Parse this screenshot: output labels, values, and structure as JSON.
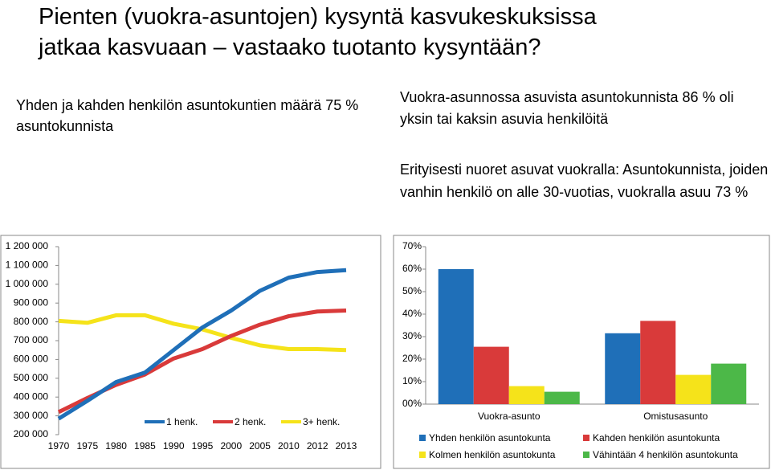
{
  "title_lines": [
    "Pienten (vuokra-asuntojen) kysyntä kasvukeskuksissa",
    "jatkaa kasvuaan – vastaako tuotanto kysyntään?"
  ],
  "left_text": "Yhden ja kahden henkilön asuntokuntien määrä 75 % asuntokunnista",
  "right_text_1": "Vuokra-asunnossa asuvista asuntokunnista 86 % oli yksin tai kaksin asuvia henkilöitä",
  "right_text_2": "Erityisesti nuoret asuvat vuokralla: Asuntokunnista, joiden vanhin henkilö on alle 30-vuotias, vuokralla asuu 73 %",
  "chart_data": [
    {
      "type": "line",
      "categories": [
        "1970",
        "1975",
        "1980",
        "1985",
        "1990",
        "1995",
        "2000",
        "2005",
        "2010",
        "2012",
        "2013"
      ],
      "ylim": [
        200000,
        1200000
      ],
      "yticks": [
        {
          "value": 200000,
          "label": "200 000"
        },
        {
          "value": 300000,
          "label": "300 000"
        },
        {
          "value": 400000,
          "label": "400 000"
        },
        {
          "value": 500000,
          "label": "500 000"
        },
        {
          "value": 600000,
          "label": "600 000"
        },
        {
          "value": 700000,
          "label": "700 000"
        },
        {
          "value": 800000,
          "label": "800 000"
        },
        {
          "value": 900000,
          "label": "900 000"
        },
        {
          "value": 1000000,
          "label": "1 000 000"
        },
        {
          "value": 1100000,
          "label": "1 100 000"
        },
        {
          "value": 1200000,
          "label": "1 200 000"
        }
      ],
      "series": [
        {
          "name": "1 henk.",
          "color": "#1f6fb8",
          "values": [
            285000,
            380000,
            480000,
            530000,
            650000,
            770000,
            860000,
            965000,
            1035000,
            1065000,
            1075000
          ]
        },
        {
          "name": "2 henk.",
          "color": "#d93a3a",
          "values": [
            320000,
            395000,
            465000,
            520000,
            605000,
            655000,
            725000,
            785000,
            830000,
            855000,
            860000
          ]
        },
        {
          "name": "3+ henk.",
          "color": "#f5e31a",
          "values": [
            805000,
            795000,
            835000,
            835000,
            790000,
            760000,
            715000,
            675000,
            655000,
            655000,
            650000
          ]
        }
      ]
    },
    {
      "type": "bar",
      "categories": [
        "Vuokra-asunto",
        "Omistusasunto"
      ],
      "ylim": [
        0,
        70
      ],
      "yticks": [
        {
          "value": 0,
          "label": "00%"
        },
        {
          "value": 10,
          "label": "10%"
        },
        {
          "value": 20,
          "label": "20%"
        },
        {
          "value": 30,
          "label": "30%"
        },
        {
          "value": 40,
          "label": "40%"
        },
        {
          "value": 50,
          "label": "50%"
        },
        {
          "value": 60,
          "label": "60%"
        },
        {
          "value": 70,
          "label": "70%"
        }
      ],
      "series": [
        {
          "name": "Yhden henkilön asuntokunta",
          "color": "#1f6fb8",
          "values": [
            60,
            31.5
          ]
        },
        {
          "name": "Kahden henkilön asuntokunta",
          "color": "#d93a3a",
          "values": [
            25.5,
            37
          ]
        },
        {
          "name": "Kolmen henkilön asuntokunta",
          "color": "#f5e31a",
          "values": [
            8,
            13
          ]
        },
        {
          "name": "Vähintään 4 henkilön asuntokunta",
          "color": "#4cb848",
          "values": [
            5.5,
            18
          ]
        }
      ]
    }
  ]
}
